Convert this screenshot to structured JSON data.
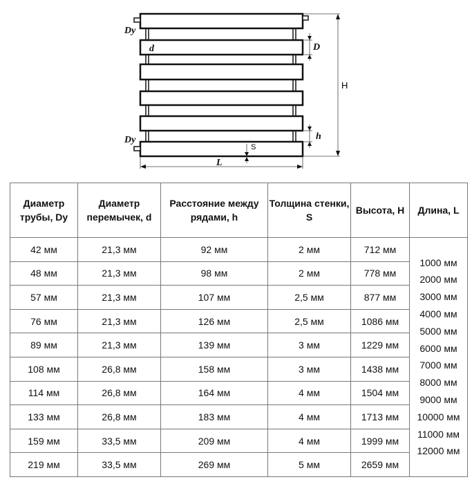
{
  "diagram": {
    "labels": {
      "dy_top": "Dy",
      "dy_bottom": "Dy",
      "d": "d",
      "D": "D",
      "H": "H",
      "h": "h",
      "S": "S",
      "L": "L"
    }
  },
  "table": {
    "headers": [
      "Диаметр трубы, Dy",
      "Диаметр перемычек, d",
      "Расстояние между рядами, h",
      "Толщина стенки, S",
      "Высота, H",
      "Длина, L"
    ],
    "rows": [
      [
        "42 мм",
        "21,3 мм",
        "92 мм",
        "2 мм",
        "712 мм"
      ],
      [
        "48 мм",
        "21,3 мм",
        "98 мм",
        "2 мм",
        "778 мм"
      ],
      [
        "57 мм",
        "21,3 мм",
        "107 мм",
        "2,5 мм",
        "877 мм"
      ],
      [
        "76 мм",
        "21,3 мм",
        "126 мм",
        "2,5 мм",
        "1086 мм"
      ],
      [
        "89 мм",
        "21,3 мм",
        "139 мм",
        "3 мм",
        "1229 мм"
      ],
      [
        "108 мм",
        "26,8 мм",
        "158 мм",
        "3 мм",
        "1438 мм"
      ],
      [
        "114 мм",
        "26,8 мм",
        "164 мм",
        "4 мм",
        "1504 мм"
      ],
      [
        "133 мм",
        "26,8 мм",
        "183 мм",
        "4 мм",
        "1713 мм"
      ],
      [
        "159 мм",
        "33,5 мм",
        "209 мм",
        "4 мм",
        "1999 мм"
      ],
      [
        "219 мм",
        "33,5 мм",
        "269 мм",
        "5 мм",
        "2659 мм"
      ]
    ],
    "lengths": [
      "1000 мм",
      "2000 мм",
      "3000 мм",
      "4000 мм",
      "5000 мм",
      "6000 мм",
      "7000 мм",
      "8000 мм",
      "9000 мм",
      "10000 мм",
      "11000 мм",
      "12000 мм"
    ]
  }
}
